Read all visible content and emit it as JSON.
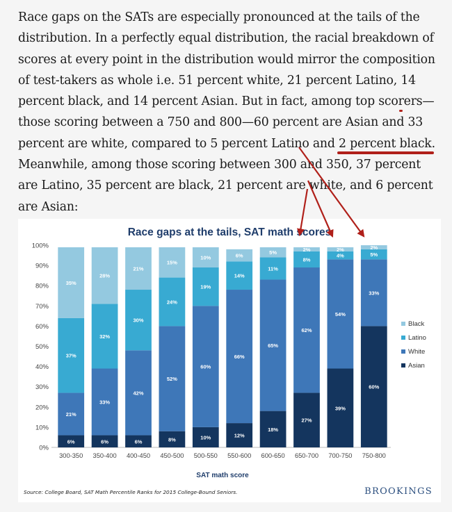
{
  "article": {
    "t1": "Race gaps on the SATs are especially pronounced at the tails of the distribution. In a perfectly equal distribution, the racial breakdown of scores at every point in the distribution would mirror the composition of test-takers as whole i.e. 51 percent white, 21 percent Latino, ",
    "h1": "14 percent black",
    "t2": ", and 14 percent Asian. But in fact, among top scorers—those scoring between a 750 and 800—60 percent are Asian and 33 percent are white, compared to 5 percent Latino and ",
    "h2": "2 percent black",
    "t3": ". Meanwhile, among those scoring between 300 and 350, 37 percent are Latino, 35 percent are black, 21 percent are white, and 6 percent are Asian:",
    "highlight_color": "#b0201a"
  },
  "figure": {
    "source": "Source: College Board, SAT Math Percentile Ranks for 2015 College-Bound Seniors.",
    "logo": "BROOKINGS"
  },
  "chart_data": {
    "type": "bar",
    "stacked": true,
    "title": "Race gaps at the tails, SAT math scores",
    "xlabel": "SAT math score",
    "ylabel": "",
    "ylim": [
      0,
      100
    ],
    "y_ticks": [
      "0%",
      "10%",
      "20%",
      "30%",
      "40%",
      "50%",
      "60%",
      "70%",
      "80%",
      "90%",
      "100%"
    ],
    "grid": false,
    "legend_position": "right",
    "categories": [
      "300-350",
      "350-400",
      "400-450",
      "450-500",
      "500-550",
      "550-600",
      "600-650",
      "650-700",
      "700-750",
      "750-800"
    ],
    "series": [
      {
        "name": "Asian",
        "color": "#14355e",
        "values": [
          6,
          6,
          6,
          8,
          10,
          12,
          18,
          27,
          39,
          60
        ]
      },
      {
        "name": "White",
        "color": "#3e77b8",
        "values": [
          21,
          33,
          42,
          52,
          60,
          66,
          65,
          62,
          54,
          33
        ]
      },
      {
        "name": "Latino",
        "color": "#38aad2",
        "values": [
          37,
          32,
          30,
          24,
          19,
          14,
          11,
          8,
          4,
          5
        ]
      },
      {
        "name": "Black",
        "color": "#94c9e0",
        "values": [
          35,
          28,
          21,
          15,
          10,
          6,
          5,
          2,
          2,
          2
        ]
      }
    ],
    "legend_order": [
      "Black",
      "Latino",
      "White",
      "Asian"
    ],
    "annotation_arrows_color": "#b0201a"
  }
}
